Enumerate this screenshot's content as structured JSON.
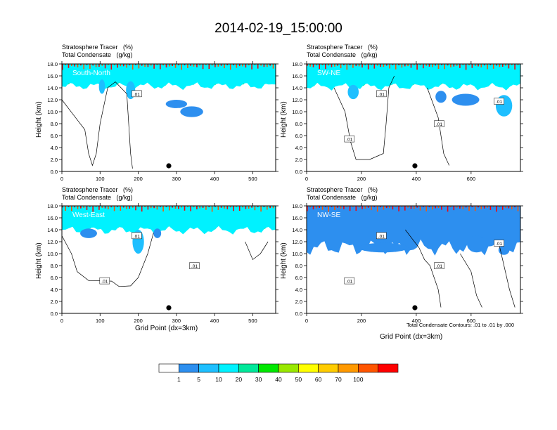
{
  "figure": {
    "title": "2014-02-19_15:00:00",
    "xlabel": "Grid Point (dx=3km)",
    "ylabel": "Height (km)",
    "field_line1": "Stratosphere Tracer   (%)",
    "field_line2": "Total Condensate   (g/kg)",
    "contour_note": "Total Condensate Contours: .01 to .01 by .000"
  },
  "colorbar": {
    "colors": [
      "#ffffff",
      "#2d8fef",
      "#1ebfff",
      "#00f2ff",
      "#00e89a",
      "#00e800",
      "#99e800",
      "#ffff00",
      "#ffcc00",
      "#ff9900",
      "#ff5500",
      "#ff0000"
    ],
    "labels": [
      "1",
      "5",
      "10",
      "20",
      "30",
      "40",
      "50",
      "60",
      "70",
      "100"
    ]
  },
  "chart_data": [
    {
      "type": "heatmap",
      "panel_label": "South-North",
      "x_ticks": [
        0,
        100,
        200,
        300,
        400,
        500
      ],
      "xlim": [
        0,
        560
      ],
      "y_ticks": [
        "0.0",
        "2.0",
        "4.0",
        "6.0",
        "8.0",
        "10.0",
        "12.0",
        "14.0",
        "16.0",
        "18.0"
      ],
      "ylim": [
        0,
        18
      ],
      "contour_labels": [
        ".01"
      ],
      "marker_x": 280
    },
    {
      "type": "heatmap",
      "panel_label": "SW-NE",
      "x_ticks": [
        0,
        200,
        400,
        600
      ],
      "xlim": [
        0,
        780
      ],
      "y_ticks": [
        "0.0",
        "2.0",
        "4.0",
        "6.0",
        "8.0",
        "10.0",
        "12.0",
        "14.0",
        "16.0",
        "18.0"
      ],
      "ylim": [
        0,
        18
      ],
      "contour_labels": [
        ".01",
        ".01",
        ".01",
        ".01"
      ],
      "marker_x": 395
    },
    {
      "type": "heatmap",
      "panel_label": "West-East",
      "x_ticks": [
        0,
        100,
        200,
        300,
        400,
        500
      ],
      "xlim": [
        0,
        560
      ],
      "y_ticks": [
        "0.0",
        "2.0",
        "4.0",
        "6.0",
        "8.0",
        "10.0",
        "12.0",
        "14.0",
        "16.0",
        "18.0"
      ],
      "ylim": [
        0,
        18
      ],
      "contour_labels": [
        ".01",
        ".01",
        ".01"
      ],
      "marker_x": 280
    },
    {
      "type": "heatmap",
      "panel_label": "NW-SE",
      "x_ticks": [
        0,
        200,
        400,
        600
      ],
      "xlim": [
        0,
        780
      ],
      "y_ticks": [
        "0.0",
        "2.0",
        "4.0",
        "6.0",
        "8.0",
        "10.0",
        "12.0",
        "14.0",
        "16.0",
        "18.0"
      ],
      "ylim": [
        0,
        18
      ],
      "contour_labels": [
        ".01",
        ".01",
        ".01",
        ".01"
      ],
      "marker_x": 395
    }
  ]
}
